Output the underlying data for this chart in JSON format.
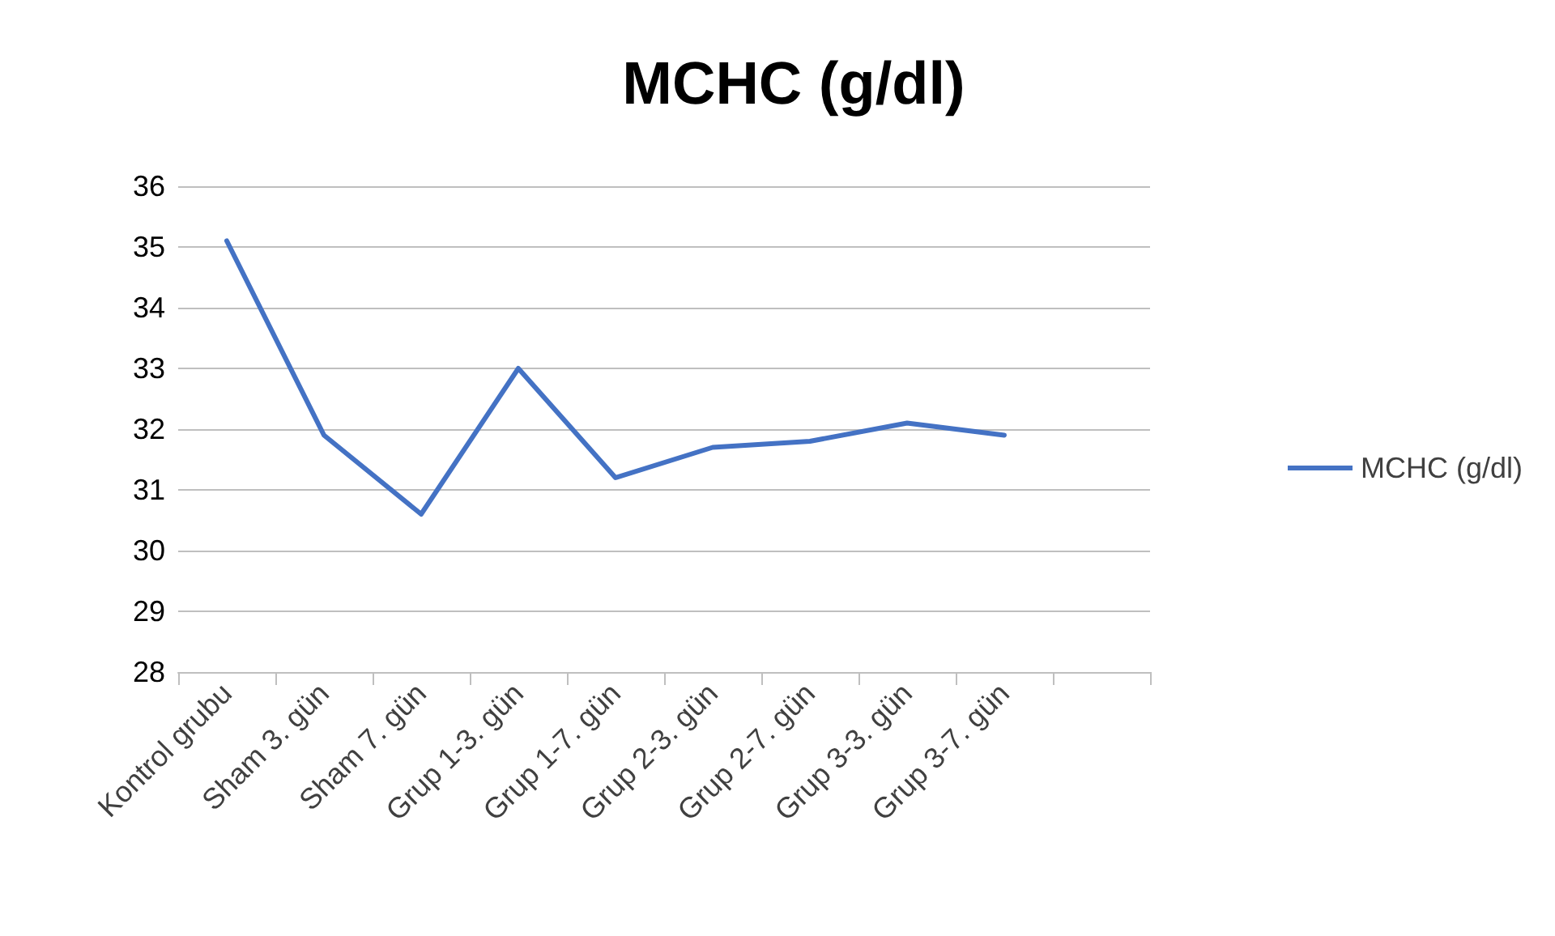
{
  "chart_data": {
    "type": "line",
    "title": "MCHC (g/dl)",
    "categories": [
      "Kontrol grubu",
      "Sham 3. gün",
      "Sham 7. gün",
      "Grup 1-3. gün",
      "Grup 1-7. gün",
      "Grup 2-3. gün",
      "Grup 2-7. gün",
      "Grup 3-3. gün",
      "Grup 3-7. gün",
      null
    ],
    "series": [
      {
        "name": "MCHC (g/dl)",
        "color": "#4472c4",
        "values": [
          35.1,
          31.9,
          30.6,
          33.0,
          31.2,
          31.7,
          31.8,
          32.1,
          31.9,
          null
        ]
      }
    ],
    "ylim": [
      28,
      36
    ],
    "yticks": [
      28,
      29,
      30,
      31,
      32,
      33,
      34,
      35,
      36
    ],
    "grid": "y",
    "legend": "right",
    "marker": "none",
    "line_style": "solid"
  }
}
